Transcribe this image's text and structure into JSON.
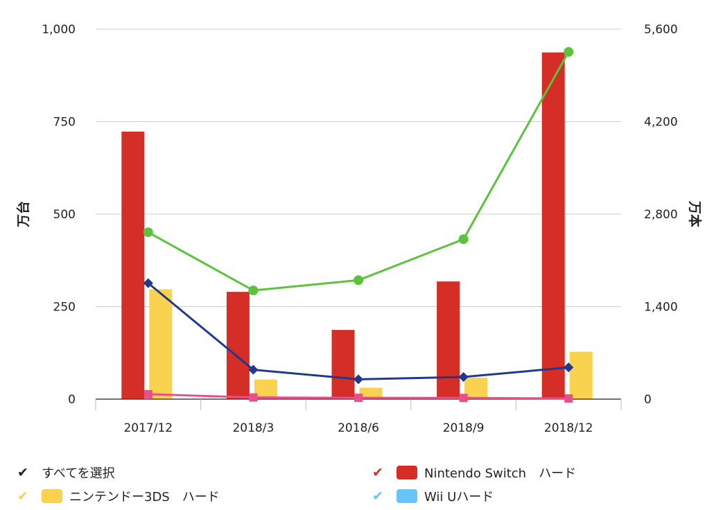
{
  "chart_data": {
    "type": "bar",
    "categories": [
      "2017/12",
      "2018/3",
      "2018/6",
      "2018/9",
      "2018/12"
    ],
    "ylabel_left": "万台",
    "ylabel_right": "万本",
    "ylim_left": [
      0,
      1000
    ],
    "ylim_right": [
      0,
      5600
    ],
    "yticks_left": [
      "0",
      "250",
      "500",
      "750",
      "1,000"
    ],
    "yticks_right": [
      "0",
      "1,400",
      "2,800",
      "4,200",
      "5,600"
    ],
    "grid": true,
    "bar_series": [
      {
        "name": "Nintendo Switch　ハード",
        "color": "#d42e27",
        "values": [
          723,
          290,
          187,
          318,
          937
        ]
      },
      {
        "name": "ニンテンドー3DS　ハード",
        "color": "#f9d24f",
        "values": [
          297,
          53,
          31,
          58,
          128
        ]
      },
      {
        "name": "Wii Uハード",
        "color": "#66c4f7",
        "values": [
          0,
          0,
          0,
          0,
          0
        ]
      }
    ],
    "line_series": [
      {
        "color": "#5bc33b",
        "marker": "circle",
        "axis": "right",
        "values": [
          2525,
          1645,
          1800,
          2420,
          5255
        ]
      },
      {
        "color": "#1f3a8c",
        "marker": "diamond",
        "axis": "right",
        "values": [
          1755,
          445,
          300,
          335,
          480
        ]
      },
      {
        "color": "#e94f8a",
        "marker": "square",
        "axis": "right",
        "values": [
          75,
          25,
          20,
          18,
          10
        ]
      }
    ]
  },
  "legend": {
    "select_all": {
      "label": "すべてを選択",
      "check_color": "#222222"
    },
    "items": [
      {
        "label": "Nintendo Switch　ハード",
        "check_color": "#d42e27",
        "swatch": "#d42e27"
      },
      {
        "label": "ニンテンドー3DS　ハード",
        "check_color": "#f9d24f",
        "swatch": "#f9d24f"
      },
      {
        "label": "Wii Uハード",
        "check_color": "#66c4f7",
        "swatch": "#66c4f7"
      }
    ]
  }
}
